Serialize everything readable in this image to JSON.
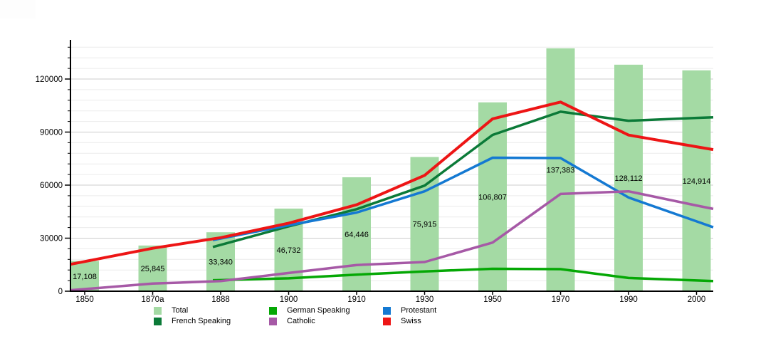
{
  "chart_data": {
    "type": "bar",
    "title": "",
    "xlabel": "",
    "ylabel": "",
    "categories": [
      "1850",
      "1870a",
      "1888",
      "1900",
      "1910",
      "1930",
      "1950",
      "1970",
      "1990",
      "2000"
    ],
    "y_axis": {
      "tick_values": [
        0,
        30000,
        60000,
        90000,
        120000
      ],
      "tick_labels": [
        "0",
        "30000",
        "60000",
        "90000",
        "120000"
      ],
      "minor_step": 6000,
      "minor_max": 138000,
      "ylim": [
        0,
        141500
      ],
      "grid": "horizontal"
    },
    "bars": {
      "name": "Total",
      "color": "#a4daa4",
      "values": [
        17108,
        25845,
        33340,
        46732,
        64446,
        75915,
        106807,
        137383,
        128112,
        124914
      ],
      "labels": [
        "17,108",
        "25,845",
        "33,340",
        "46,732",
        "64,446",
        "75,915",
        "106,807",
        "137,383",
        "128,112",
        "124,914"
      ]
    },
    "series": [
      {
        "name": "French Speaking",
        "color": "#0b7a38",
        "values": [
          null,
          null,
          26200,
          36700,
          46400,
          59700,
          88400,
          101500,
          96400,
          98000
        ]
      },
      {
        "name": "German Speaking",
        "color": "#05a805",
        "values": [
          null,
          null,
          6300,
          7300,
          9400,
          11200,
          12700,
          12500,
          7500,
          6100
        ]
      },
      {
        "name": "Protestant",
        "color": "#1479d2",
        "values": [
          null,
          null,
          29800,
          37300,
          44500,
          56500,
          75500,
          75300,
          53000,
          39500
        ]
      },
      {
        "name": "Catholic",
        "color": "#a659a6",
        "values": [
          1200,
          4300,
          5700,
          10300,
          14800,
          16500,
          27500,
          55000,
          56500,
          48500
        ]
      },
      {
        "name": "Swiss",
        "color": "#ed1515",
        "values": [
          16800,
          24300,
          30300,
          38500,
          48900,
          65500,
          97500,
          107000,
          88300,
          81700
        ]
      }
    ],
    "legend": {
      "position": "bottom",
      "entries": [
        {
          "label": "Total",
          "color": "#a4daa4",
          "kind": "bar"
        },
        {
          "label": "French Speaking",
          "color": "#0b7a38",
          "kind": "line"
        },
        {
          "label": "German Speaking",
          "color": "#05a805",
          "kind": "line"
        },
        {
          "label": "Catholic",
          "color": "#a659a6",
          "kind": "line"
        },
        {
          "label": "Protestant",
          "color": "#1479d2",
          "kind": "line"
        },
        {
          "label": "Swiss",
          "color": "#ed1515",
          "kind": "line"
        }
      ]
    },
    "colors": {
      "axis": "#000000",
      "grid_major": "#cccccc",
      "grid_minor": "#ececec",
      "text": "#000000",
      "background": "#ffffff"
    }
  }
}
